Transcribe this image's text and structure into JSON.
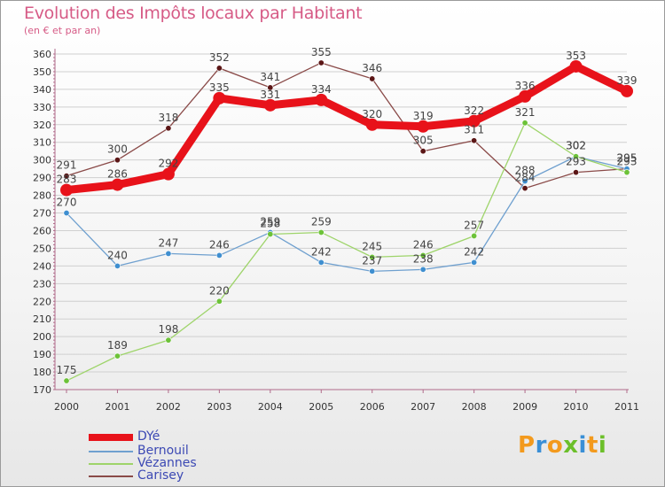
{
  "header": {
    "title": "Evolution des Impôts locaux par Habitant",
    "subtitle": "(en € et par an)"
  },
  "brand": {
    "letters": [
      "P",
      "r",
      "o",
      "x",
      "i",
      "t",
      "i"
    ]
  },
  "colors": {
    "title": "#d65b86",
    "axis": "#b06a8a",
    "grid": "#cfcfcf",
    "tick_text": "#333333",
    "value_text": "#444444",
    "legend_text": "#3c49b4",
    "brand": [
      "#f39a1d",
      "#3a8fd6",
      "#f39a1d",
      "#6cbf2a",
      "#3a8fd6",
      "#f39a1d",
      "#6cbf2a"
    ]
  },
  "chart_data": {
    "type": "line",
    "title": "Evolution des Impôts locaux par Habitant",
    "subtitle": "(en € et par an)",
    "xlabel": "",
    "ylabel": "",
    "x": [
      "2000",
      "2001",
      "2002",
      "2003",
      "2004",
      "2005",
      "2006",
      "2007",
      "2008",
      "2009",
      "2010",
      "2011"
    ],
    "ylim": [
      170,
      360
    ],
    "yticks": [
      170,
      180,
      190,
      200,
      210,
      220,
      230,
      240,
      250,
      260,
      270,
      280,
      290,
      300,
      310,
      320,
      330,
      340,
      350,
      360
    ],
    "grid": true,
    "legend_position": "bottom-left",
    "series": [
      {
        "name": "DYé",
        "color": "#e8121a",
        "marker_color": "#e8121a",
        "weight": "heavy",
        "values": [
          283,
          286,
          292,
          335,
          331,
          334,
          320,
          319,
          322,
          336,
          353,
          339
        ],
        "labels": [
          "283",
          "286",
          "292",
          "335",
          "331",
          "334",
          "320",
          "319",
          "322",
          "336",
          "353",
          "339"
        ]
      },
      {
        "name": "Bernouil",
        "color": "#6fa0cf",
        "marker_color": "#3f8fd0",
        "weight": "thin",
        "values": [
          270,
          240,
          247,
          246,
          259,
          242,
          237,
          238,
          242,
          288,
          302,
          295
        ],
        "labels": [
          "270",
          "240",
          "247",
          "246",
          "259",
          "242",
          "237",
          "238",
          "242",
          "288",
          "302",
          "295"
        ]
      },
      {
        "name": "Vézannes",
        "color": "#9ed46a",
        "marker_color": "#6cc238",
        "weight": "thin",
        "values": [
          175,
          189,
          198,
          220,
          258,
          259,
          245,
          246,
          257,
          321,
          302,
          293
        ],
        "labels": [
          "175",
          "189",
          "198",
          "220",
          "258",
          "259",
          "245",
          "246",
          "257",
          "321",
          "302",
          "293"
        ]
      },
      {
        "name": "Carisey",
        "color": "#8a4a48",
        "marker_color": "#5b1616",
        "weight": "thin",
        "values": [
          291,
          300,
          318,
          352,
          341,
          355,
          346,
          305,
          311,
          284,
          293,
          295
        ],
        "labels": [
          "291",
          "300",
          "318",
          "352",
          "341",
          "355",
          "346",
          "305",
          "311",
          "284",
          "293",
          "295"
        ]
      }
    ]
  }
}
